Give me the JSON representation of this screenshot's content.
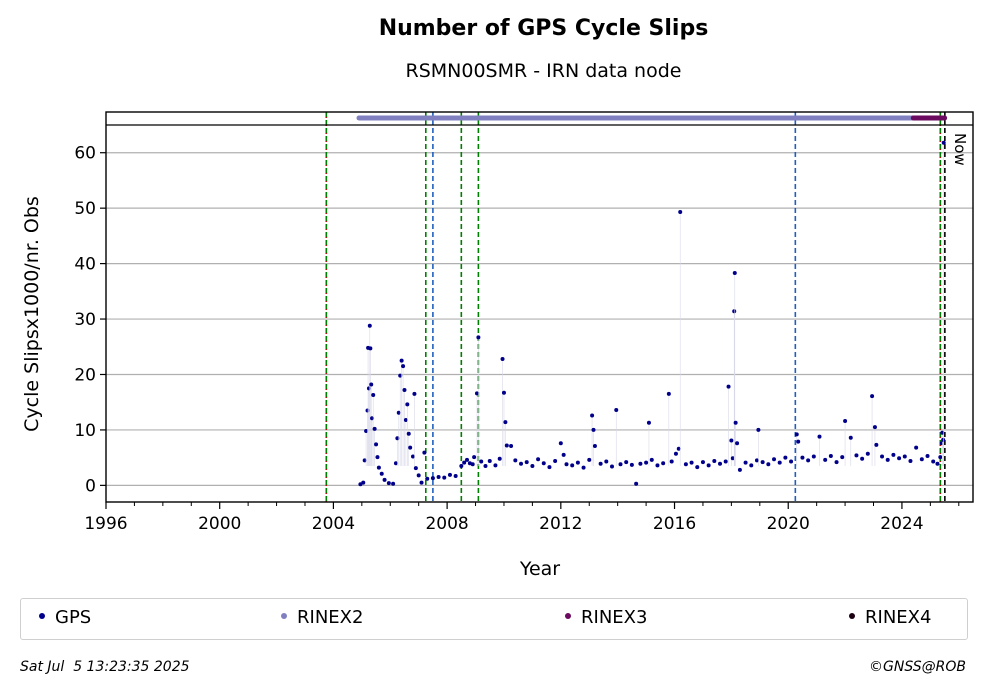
{
  "chart_data": {
    "type": "scatter",
    "title": "Number of GPS Cycle Slips",
    "subtitle": "RSMN00SMR - IRN data node",
    "xlabel": "Year",
    "ylabel": "Cycle Slipsx1000/nr. Obs",
    "xlim": [
      1996,
      2026.5
    ],
    "ylim": [
      -3,
      65
    ],
    "x_ticks": [
      1996,
      2000,
      2004,
      2008,
      2012,
      2016,
      2020,
      2024
    ],
    "y_ticks": [
      0,
      10,
      20,
      30,
      40,
      50,
      60
    ],
    "grid": "horizontal",
    "now_label": "Now",
    "vlines": [
      {
        "x": 2003.75,
        "color": "#cc0000",
        "style": "dotted"
      },
      {
        "x": 2003.75,
        "color": "#008000",
        "style": "dashed"
      },
      {
        "x": 2007.25,
        "color": "#008000",
        "style": "dashed"
      },
      {
        "x": 2007.5,
        "color": "#1f5fbf",
        "style": "dashed"
      },
      {
        "x": 2008.5,
        "color": "#008000",
        "style": "dashed"
      },
      {
        "x": 2009.1,
        "color": "#008000",
        "style": "dashed"
      },
      {
        "x": 2020.25,
        "color": "#1f5fbf",
        "style": "dashed"
      },
      {
        "x": 2025.35,
        "color": "#cc0000",
        "style": "dotted"
      },
      {
        "x": 2025.35,
        "color": "#008000",
        "style": "dashed"
      },
      {
        "x": 2025.51,
        "color": "#000000",
        "style": "dashed"
      }
    ],
    "rinex_bars": [
      {
        "name": "RINEX2",
        "start": 2004.9,
        "end": 2025.5
      },
      {
        "name": "RINEX3",
        "start": 2024.4,
        "end": 2025.5
      }
    ],
    "series": [
      {
        "name": "GPS",
        "points": [
          [
            2004.95,
            0.2
          ],
          [
            2005.05,
            0.5
          ],
          [
            2005.1,
            4.5
          ],
          [
            2005.15,
            9.8
          ],
          [
            2005.2,
            13.5
          ],
          [
            2005.22,
            24.8
          ],
          [
            2005.25,
            17.5
          ],
          [
            2005.28,
            28.8
          ],
          [
            2005.3,
            24.7
          ],
          [
            2005.33,
            18.2
          ],
          [
            2005.36,
            12.1
          ],
          [
            2005.4,
            16.3
          ],
          [
            2005.45,
            10.2
          ],
          [
            2005.5,
            7.4
          ],
          [
            2005.55,
            5.1
          ],
          [
            2005.6,
            3.2
          ],
          [
            2005.7,
            2.1
          ],
          [
            2005.8,
            1.0
          ],
          [
            2005.95,
            0.4
          ],
          [
            2006.1,
            0.3
          ],
          [
            2006.2,
            4.0
          ],
          [
            2006.25,
            8.5
          ],
          [
            2006.3,
            13.1
          ],
          [
            2006.35,
            19.8
          ],
          [
            2006.4,
            22.5
          ],
          [
            2006.45,
            21.5
          ],
          [
            2006.5,
            17.2
          ],
          [
            2006.55,
            11.8
          ],
          [
            2006.6,
            14.6
          ],
          [
            2006.65,
            9.3
          ],
          [
            2006.7,
            6.8
          ],
          [
            2006.8,
            5.2
          ],
          [
            2006.85,
            16.5
          ],
          [
            2006.9,
            3.1
          ],
          [
            2007.0,
            1.8
          ],
          [
            2007.1,
            0.5
          ],
          [
            2007.2,
            5.9
          ],
          [
            2007.3,
            1.2
          ],
          [
            2007.5,
            1.3
          ],
          [
            2007.7,
            1.5
          ],
          [
            2007.9,
            1.4
          ],
          [
            2008.1,
            1.9
          ],
          [
            2008.3,
            1.7
          ],
          [
            2008.5,
            3.5
          ],
          [
            2008.6,
            4.1
          ],
          [
            2008.7,
            4.6
          ],
          [
            2008.8,
            4.0
          ],
          [
            2008.9,
            3.8
          ],
          [
            2008.95,
            5.1
          ],
          [
            2009.05,
            16.6
          ],
          [
            2009.1,
            26.7
          ],
          [
            2009.2,
            4.3
          ],
          [
            2009.35,
            3.5
          ],
          [
            2009.5,
            4.4
          ],
          [
            2009.7,
            3.6
          ],
          [
            2009.85,
            4.8
          ],
          [
            2009.95,
            22.8
          ],
          [
            2010.0,
            16.7
          ],
          [
            2010.05,
            11.4
          ],
          [
            2010.1,
            7.2
          ],
          [
            2010.25,
            7.1
          ],
          [
            2010.4,
            4.5
          ],
          [
            2010.6,
            3.9
          ],
          [
            2010.8,
            4.2
          ],
          [
            2011.0,
            3.5
          ],
          [
            2011.2,
            4.7
          ],
          [
            2011.4,
            4.0
          ],
          [
            2011.6,
            3.3
          ],
          [
            2011.8,
            4.4
          ],
          [
            2012.0,
            7.6
          ],
          [
            2012.1,
            5.5
          ],
          [
            2012.2,
            3.8
          ],
          [
            2012.4,
            3.6
          ],
          [
            2012.6,
            4.1
          ],
          [
            2012.8,
            3.2
          ],
          [
            2013.0,
            4.6
          ],
          [
            2013.1,
            12.6
          ],
          [
            2013.15,
            10.0
          ],
          [
            2013.2,
            7.1
          ],
          [
            2013.4,
            3.9
          ],
          [
            2013.6,
            4.3
          ],
          [
            2013.8,
            3.4
          ],
          [
            2013.95,
            13.6
          ],
          [
            2014.1,
            3.8
          ],
          [
            2014.3,
            4.2
          ],
          [
            2014.5,
            3.7
          ],
          [
            2014.65,
            0.3
          ],
          [
            2014.8,
            3.9
          ],
          [
            2015.0,
            4.1
          ],
          [
            2015.1,
            11.3
          ],
          [
            2015.2,
            4.6
          ],
          [
            2015.4,
            3.6
          ],
          [
            2015.6,
            4.0
          ],
          [
            2015.8,
            16.5
          ],
          [
            2015.9,
            4.3
          ],
          [
            2016.05,
            5.7
          ],
          [
            2016.15,
            6.6
          ],
          [
            2016.2,
            49.3
          ],
          [
            2016.4,
            3.8
          ],
          [
            2016.6,
            4.1
          ],
          [
            2016.8,
            3.3
          ],
          [
            2017.0,
            4.2
          ],
          [
            2017.2,
            3.6
          ],
          [
            2017.4,
            4.4
          ],
          [
            2017.6,
            3.9
          ],
          [
            2017.8,
            4.3
          ],
          [
            2017.9,
            17.8
          ],
          [
            2018.0,
            8.1
          ],
          [
            2018.05,
            4.9
          ],
          [
            2018.1,
            31.4
          ],
          [
            2018.12,
            38.3
          ],
          [
            2018.15,
            11.3
          ],
          [
            2018.2,
            7.6
          ],
          [
            2018.3,
            2.8
          ],
          [
            2018.5,
            4.1
          ],
          [
            2018.7,
            3.6
          ],
          [
            2018.9,
            4.5
          ],
          [
            2018.95,
            10.0
          ],
          [
            2019.1,
            4.2
          ],
          [
            2019.3,
            3.8
          ],
          [
            2019.5,
            4.7
          ],
          [
            2019.7,
            4.1
          ],
          [
            2019.9,
            5.0
          ],
          [
            2020.1,
            4.3
          ],
          [
            2020.3,
            9.2
          ],
          [
            2020.35,
            7.9
          ],
          [
            2020.5,
            5.0
          ],
          [
            2020.7,
            4.5
          ],
          [
            2020.9,
            5.2
          ],
          [
            2021.1,
            8.8
          ],
          [
            2021.3,
            4.6
          ],
          [
            2021.5,
            5.3
          ],
          [
            2021.7,
            4.2
          ],
          [
            2021.9,
            5.1
          ],
          [
            2022.0,
            11.6
          ],
          [
            2022.2,
            8.6
          ],
          [
            2022.4,
            5.4
          ],
          [
            2022.6,
            4.8
          ],
          [
            2022.8,
            5.7
          ],
          [
            2022.95,
            16.1
          ],
          [
            2023.05,
            10.5
          ],
          [
            2023.1,
            7.3
          ],
          [
            2023.3,
            5.2
          ],
          [
            2023.5,
            4.6
          ],
          [
            2023.7,
            5.5
          ],
          [
            2023.9,
            4.9
          ],
          [
            2024.1,
            5.2
          ],
          [
            2024.3,
            4.4
          ],
          [
            2024.5,
            6.8
          ],
          [
            2024.7,
            4.7
          ],
          [
            2024.9,
            5.3
          ],
          [
            2025.1,
            4.3
          ],
          [
            2025.25,
            3.9
          ],
          [
            2025.35,
            5.1
          ],
          [
            2025.4,
            7.6
          ],
          [
            2025.42,
            9.5
          ],
          [
            2025.45,
            8.2
          ],
          [
            2025.47,
            61.8
          ]
        ]
      }
    ],
    "legend": [
      {
        "label": "GPS",
        "color": "#00008b"
      },
      {
        "label": "RINEX2",
        "color": "#8080c0"
      },
      {
        "label": "RINEX3",
        "color": "#6b0a5e"
      },
      {
        "label": "RINEX4",
        "color": "#1a0010"
      }
    ]
  },
  "footer": {
    "date": "Sat Jul  5 13:23:35 2025",
    "copyright": "©GNSS@ROB"
  }
}
